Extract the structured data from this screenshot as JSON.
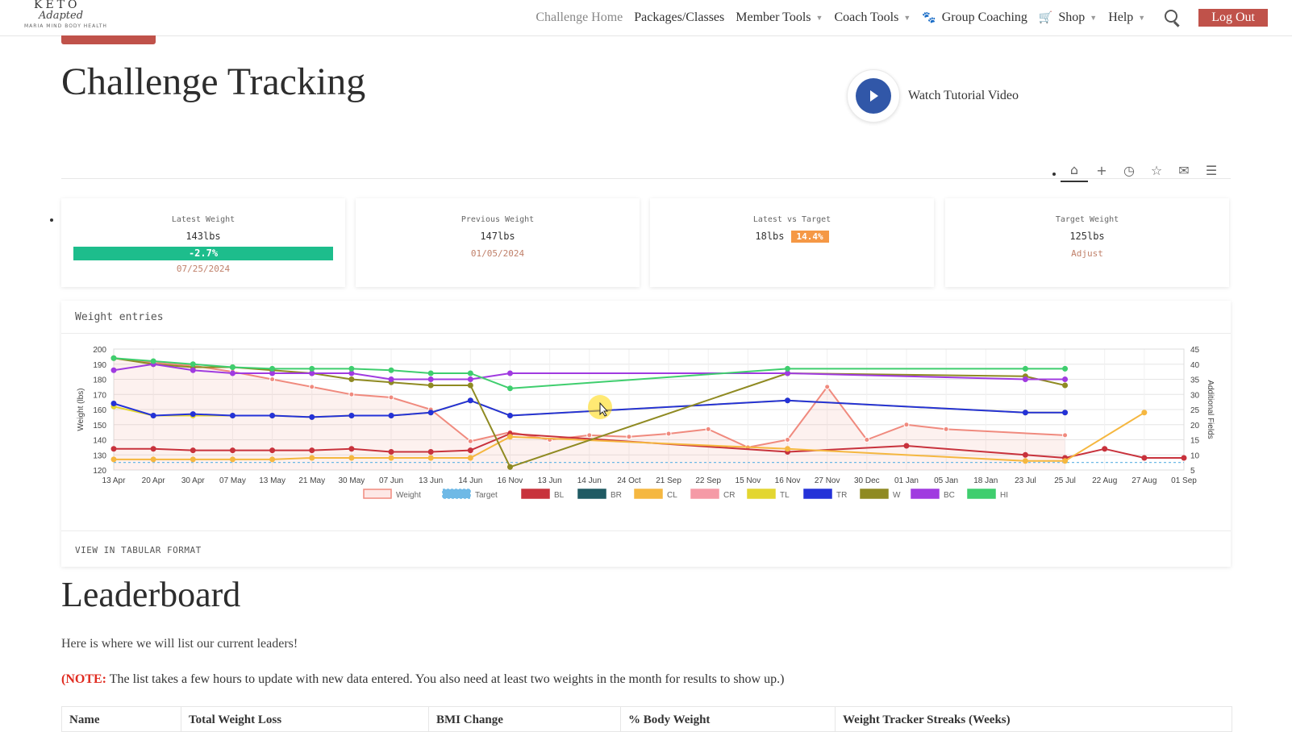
{
  "brand": {
    "top": "KETO",
    "script": "Adapted",
    "sub": "MARIA MIND BODY HEALTH"
  },
  "nav": {
    "items": [
      {
        "label": "Challenge Home"
      },
      {
        "label": "Packages/Classes"
      },
      {
        "label": "Member Tools"
      },
      {
        "label": "Coach Tools"
      },
      {
        "label": "Group Coaching"
      },
      {
        "label": "Shop"
      },
      {
        "label": "Help"
      }
    ],
    "logout": "Log Out"
  },
  "page": {
    "title": "Challenge Tracking",
    "tutorial_label": "Watch Tutorial Video"
  },
  "toolbar": {
    "icons": [
      "home-icon",
      "crosshair-icon",
      "history-icon",
      "star-icon",
      "mail-icon",
      "settings-sliders-icon"
    ]
  },
  "stats": {
    "latest": {
      "label": "Latest Weight",
      "value": "143lbs",
      "change": "-2.7%",
      "date": "07/25/2024"
    },
    "previous": {
      "label": "Previous Weight",
      "value": "147lbs",
      "date": "01/05/2024"
    },
    "vs_target": {
      "label": "Latest vs Target",
      "value": "18lbs",
      "pct": "14.4%"
    },
    "target": {
      "label": "Target Weight",
      "value": "125lbs",
      "action": "Adjust"
    }
  },
  "weight_card": {
    "title": "Weight entries",
    "view_link": "VIEW IN TABULAR FORMAT"
  },
  "chart_data": {
    "type": "line",
    "ylabel": "Weight (lbs)",
    "y2label": "Additional Fields",
    "ylim": [
      120,
      200
    ],
    "y2lim": [
      5,
      45
    ],
    "y_ticks": [
      120,
      130,
      140,
      150,
      160,
      170,
      180,
      190,
      200
    ],
    "y2_ticks": [
      5,
      10,
      15,
      20,
      25,
      30,
      35,
      40,
      45
    ],
    "grid": true,
    "legend_position": "bottom",
    "categories": [
      "13 Apr",
      "20 Apr",
      "30 Apr",
      "07 May",
      "13 May",
      "21 May",
      "30 May",
      "07 Jun",
      "13 Jun",
      "14 Jun",
      "16 Nov",
      "13 Jun",
      "14 Jun",
      "24 Oct",
      "21 Sep",
      "22 Sep",
      "15 Nov",
      "16 Nov",
      "27 Nov",
      "30 Dec",
      "01 Jan",
      "05 Jan",
      "18 Jan",
      "23 Jul",
      "25 Jul",
      "22 Aug",
      "27 Aug",
      "01 Sep"
    ],
    "series": [
      {
        "name": "Weight",
        "axis": "left",
        "color": "#f08a7e",
        "fill": true,
        "values": [
          194,
          191,
          189,
          185,
          180,
          175,
          170,
          168,
          160,
          139,
          145,
          140,
          143,
          142,
          144,
          147,
          135,
          140,
          175,
          140,
          150,
          147,
          null,
          null,
          143,
          null,
          null,
          null
        ]
      },
      {
        "name": "Target",
        "axis": "left",
        "color": "#6fb9e6",
        "dashed": true,
        "values": [
          125,
          125,
          125,
          125,
          125,
          125,
          125,
          125,
          125,
          125,
          125,
          125,
          125,
          125,
          125,
          125,
          125,
          125,
          125,
          125,
          125,
          125,
          125,
          125,
          125,
          125,
          125,
          125
        ]
      },
      {
        "name": "BL",
        "axis": "right",
        "color": "#c8323c",
        "values": [
          12,
          12,
          11.5,
          11.5,
          11.5,
          11.5,
          12,
          11,
          11,
          11.5,
          17,
          null,
          null,
          null,
          null,
          null,
          null,
          11,
          null,
          null,
          13,
          null,
          null,
          10,
          9,
          12,
          9,
          9
        ]
      },
      {
        "name": "BR",
        "axis": "right",
        "color": "#1f5a63",
        "values": null
      },
      {
        "name": "CL",
        "axis": "right",
        "color": "#f5b740",
        "values": [
          8.5,
          8.5,
          8.5,
          8.5,
          8.5,
          9,
          9,
          9,
          9,
          9,
          16,
          null,
          null,
          null,
          null,
          null,
          null,
          12,
          null,
          null,
          null,
          null,
          null,
          8,
          8,
          null,
          24,
          null
        ]
      },
      {
        "name": "CR",
        "axis": "right",
        "color": "#f59aa6",
        "values": null
      },
      {
        "name": "TL",
        "axis": "right",
        "color": "#e3d630",
        "values": [
          26,
          23,
          23,
          23,
          23,
          22.5,
          23,
          23,
          24,
          28,
          23,
          null,
          null,
          null,
          null,
          null,
          null,
          28,
          null,
          null,
          null,
          null,
          null,
          24,
          24,
          null,
          null,
          null
        ]
      },
      {
        "name": "TR",
        "axis": "right",
        "color": "#2432d8",
        "values": [
          27,
          23,
          23.5,
          23,
          23,
          22.5,
          23,
          23,
          24,
          28,
          23,
          null,
          null,
          null,
          null,
          null,
          null,
          28,
          null,
          null,
          null,
          null,
          null,
          24,
          24,
          null,
          null,
          null
        ]
      },
      {
        "name": "W",
        "axis": "right",
        "color": "#8f8a22",
        "values": [
          42,
          40,
          39,
          39,
          38,
          37,
          35,
          34,
          33,
          33,
          6,
          null,
          null,
          null,
          null,
          null,
          null,
          37,
          null,
          null,
          null,
          null,
          null,
          36,
          33,
          null,
          null,
          null
        ]
      },
      {
        "name": "BC",
        "axis": "right",
        "color": "#a03be0",
        "values": [
          38,
          40,
          38,
          37,
          37,
          37,
          37,
          35,
          35,
          35,
          37,
          null,
          null,
          null,
          null,
          null,
          null,
          37,
          null,
          null,
          null,
          null,
          null,
          35,
          35,
          null,
          null,
          null
        ]
      },
      {
        "name": "HI",
        "axis": "right",
        "color": "#3fce6e",
        "values": [
          42,
          41,
          40,
          39,
          38.5,
          38.5,
          38.5,
          38,
          37,
          37,
          32,
          null,
          null,
          null,
          null,
          null,
          null,
          38.5,
          null,
          null,
          null,
          null,
          null,
          38.5,
          38.5,
          null,
          null,
          null
        ]
      }
    ]
  },
  "leaderboard": {
    "title": "Leaderboard",
    "intro": "Here is where we will list our current leaders!",
    "note_label": "(NOTE:",
    "note_text": " The list takes a few hours to update with new data entered. You also need at least two weights in the month for results to show up.)",
    "columns": [
      "Name",
      "Total Weight Loss",
      "BMI Change",
      "% Body Weight",
      "Weight Tracker Streaks (Weeks)"
    ]
  }
}
